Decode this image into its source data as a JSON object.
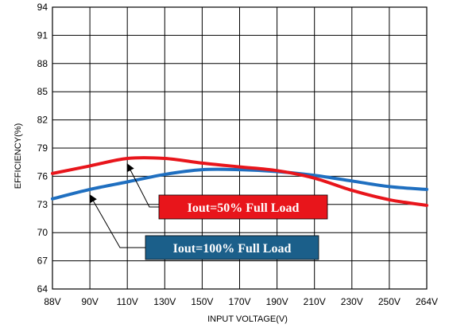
{
  "chart_data": {
    "type": "line",
    "xlabel": "INPUT VOLTAGE(V)",
    "ylabel": "EFFICIENCY(%)",
    "categories": [
      "88V",
      "90V",
      "110V",
      "130V",
      "150V",
      "170V",
      "190V",
      "210V",
      "230V",
      "250V",
      "264V"
    ],
    "ylim": [
      64,
      94
    ],
    "yticks": [
      64,
      67,
      70,
      73,
      76,
      79,
      82,
      85,
      88,
      91,
      94
    ],
    "grid": true,
    "series": [
      {
        "color": "#e8151b",
        "values": [
          76.3,
          77.1,
          77.9,
          77.9,
          77.4,
          77.0,
          76.6,
          75.8,
          74.5,
          73.5,
          72.9
        ]
      },
      {
        "color": "#1f6fc0",
        "values": [
          73.6,
          74.6,
          75.4,
          76.2,
          76.7,
          76.7,
          76.5,
          76.1,
          75.5,
          74.9,
          74.6
        ]
      }
    ],
    "annotations": [
      {
        "text": "Iout=50% Full Load",
        "bg": "#e8151b",
        "series": 0,
        "point_index": 2
      },
      {
        "text": "Iout=100% Full Load",
        "bg": "#1b5f8a",
        "series": 1,
        "point_index": 1
      }
    ]
  }
}
